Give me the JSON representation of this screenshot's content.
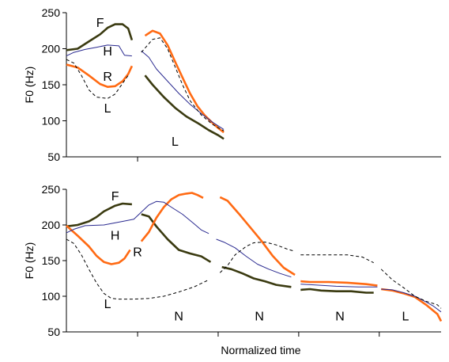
{
  "chart_data": [
    {
      "type": "line",
      "ylabel": "F0 (Hz)",
      "ylim": [
        50,
        250
      ],
      "yticks": [
        50,
        100,
        150,
        200,
        250
      ],
      "xlim": [
        0,
        1
      ],
      "grid": false,
      "segment_boundaries": [
        0.19
      ],
      "segment_labels": [
        {
          "text": "F",
          "x": 0.09,
          "y": 237
        },
        {
          "text": "H",
          "x": 0.11,
          "y": 197
        },
        {
          "text": "R",
          "x": 0.11,
          "y": 162
        },
        {
          "text": "L",
          "x": 0.11,
          "y": 118
        },
        {
          "text": "L",
          "x": 0.29,
          "y": 72
        }
      ],
      "series": [
        {
          "color": "#3a3a10",
          "width": 2.6,
          "dash": "",
          "segments": [
            [
              [
                0.0,
                198
              ],
              [
                0.03,
                200
              ],
              [
                0.06,
                210
              ],
              [
                0.09,
                220
              ],
              [
                0.11,
                229
              ],
              [
                0.13,
                234
              ],
              [
                0.15,
                234
              ],
              [
                0.165,
                228
              ],
              [
                0.175,
                212
              ]
            ],
            [
              [
                0.21,
                163
              ],
              [
                0.23,
                150
              ],
              [
                0.26,
                133
              ],
              [
                0.29,
                118
              ],
              [
                0.32,
                106
              ],
              [
                0.35,
                97
              ],
              [
                0.38,
                87
              ],
              [
                0.405,
                80
              ],
              [
                0.42,
                75
              ]
            ]
          ]
        },
        {
          "color": "#ff6a13",
          "width": 2.6,
          "dash": "",
          "segments": [
            [
              [
                0.0,
                178
              ],
              [
                0.03,
                174
              ],
              [
                0.06,
                163
              ],
              [
                0.09,
                151
              ],
              [
                0.11,
                147
              ],
              [
                0.13,
                148
              ],
              [
                0.15,
                155
              ],
              [
                0.165,
                165
              ],
              [
                0.175,
                176
              ]
            ],
            [
              [
                0.21,
                218
              ],
              [
                0.23,
                225
              ],
              [
                0.25,
                221
              ],
              [
                0.27,
                205
              ],
              [
                0.29,
                182
              ],
              [
                0.31,
                160
              ],
              [
                0.33,
                138
              ],
              [
                0.35,
                120
              ],
              [
                0.37,
                107
              ],
              [
                0.39,
                97
              ],
              [
                0.405,
                90
              ],
              [
                0.42,
                84
              ]
            ]
          ]
        },
        {
          "color": "#2a2a90",
          "width": 1,
          "dash": "",
          "segments": [
            [
              [
                0.0,
                190
              ],
              [
                0.02,
                195
              ],
              [
                0.05,
                199
              ],
              [
                0.08,
                202
              ],
              [
                0.11,
                205
              ],
              [
                0.14,
                204
              ],
              [
                0.155,
                191
              ],
              [
                0.175,
                190
              ]
            ],
            [
              [
                0.2,
                197
              ],
              [
                0.22,
                188
              ],
              [
                0.24,
                172
              ],
              [
                0.27,
                155
              ],
              [
                0.3,
                138
              ],
              [
                0.33,
                123
              ],
              [
                0.36,
                110
              ],
              [
                0.39,
                98
              ],
              [
                0.42,
                88
              ]
            ]
          ]
        },
        {
          "color": "#000000",
          "width": 1,
          "dash": "4,3",
          "segments": [
            [
              [
                0.0,
                185
              ],
              [
                0.02,
                180
              ],
              [
                0.04,
                163
              ],
              [
                0.06,
                143
              ],
              [
                0.08,
                133
              ],
              [
                0.11,
                131
              ],
              [
                0.13,
                137
              ],
              [
                0.15,
                152
              ],
              [
                0.165,
                163
              ]
            ],
            [
              [
                0.2,
                195
              ],
              [
                0.23,
                213
              ],
              [
                0.25,
                215
              ],
              [
                0.27,
                200
              ],
              [
                0.29,
                175
              ],
              [
                0.31,
                150
              ],
              [
                0.33,
                128
              ],
              [
                0.36,
                108
              ],
              [
                0.39,
                95
              ],
              [
                0.42,
                86
              ]
            ]
          ]
        }
      ]
    },
    {
      "type": "line",
      "ylabel": "F0 (Hz)",
      "xlabel": "Normalized time",
      "ylim": [
        50,
        250
      ],
      "yticks": [
        50,
        100,
        150,
        200,
        250
      ],
      "xlim": [
        0,
        1
      ],
      "grid": false,
      "segment_boundaries": [
        0.19,
        0.405,
        0.62,
        0.835
      ],
      "segment_labels": [
        {
          "text": "F",
          "x": 0.13,
          "y": 241
        },
        {
          "text": "H",
          "x": 0.13,
          "y": 186
        },
        {
          "text": "R",
          "x": 0.19,
          "y": 163
        },
        {
          "text": "L",
          "x": 0.11,
          "y": 90
        },
        {
          "text": "N",
          "x": 0.3,
          "y": 73
        },
        {
          "text": "N",
          "x": 0.515,
          "y": 73
        },
        {
          "text": "N",
          "x": 0.73,
          "y": 73
        },
        {
          "text": "L",
          "x": 0.905,
          "y": 73
        }
      ],
      "series": [
        {
          "color": "#3a3a10",
          "width": 2.6,
          "dash": "",
          "segments": [
            [
              [
                0.0,
                198
              ],
              [
                0.03,
                200
              ],
              [
                0.06,
                205
              ],
              [
                0.08,
                211
              ],
              [
                0.1,
                219
              ],
              [
                0.13,
                227
              ],
              [
                0.15,
                230
              ],
              [
                0.175,
                229
              ]
            ],
            [
              [
                0.2,
                215
              ],
              [
                0.22,
                212
              ],
              [
                0.24,
                198
              ],
              [
                0.27,
                180
              ],
              [
                0.3,
                165
              ],
              [
                0.33,
                160
              ],
              [
                0.36,
                156
              ],
              [
                0.385,
                148
              ]
            ],
            [
              [
                0.415,
                141
              ],
              [
                0.44,
                138
              ],
              [
                0.47,
                132
              ],
              [
                0.5,
                125
              ],
              [
                0.53,
                121
              ],
              [
                0.56,
                116
              ],
              [
                0.6,
                113
              ]
            ],
            [
              [
                0.625,
                109
              ],
              [
                0.65,
                110
              ],
              [
                0.68,
                108
              ],
              [
                0.72,
                107
              ],
              [
                0.76,
                107
              ],
              [
                0.8,
                105
              ],
              [
                0.82,
                105
              ]
            ]
          ]
        },
        {
          "color": "#ff6a13",
          "width": 2.6,
          "dash": "",
          "segments": [
            [
              [
                0.0,
                199
              ],
              [
                0.03,
                185
              ],
              [
                0.06,
                170
              ],
              [
                0.08,
                157
              ],
              [
                0.1,
                148
              ],
              [
                0.12,
                145
              ],
              [
                0.14,
                147
              ],
              [
                0.155,
                153
              ],
              [
                0.17,
                165
              ]
            ],
            [
              [
                0.2,
                177
              ],
              [
                0.22,
                190
              ],
              [
                0.24,
                210
              ],
              [
                0.26,
                225
              ],
              [
                0.28,
                236
              ],
              [
                0.3,
                242
              ],
              [
                0.32,
                244
              ],
              [
                0.335,
                245
              ],
              [
                0.35,
                242
              ],
              [
                0.365,
                238
              ]
            ],
            [
              [
                0.41,
                239
              ],
              [
                0.43,
                234
              ],
              [
                0.46,
                216
              ],
              [
                0.49,
                197
              ],
              [
                0.52,
                178
              ],
              [
                0.55,
                157
              ],
              [
                0.58,
                140
              ],
              [
                0.61,
                130
              ]
            ],
            [
              [
                0.625,
                121
              ],
              [
                0.65,
                120
              ],
              [
                0.7,
                120
              ],
              [
                0.75,
                119
              ],
              [
                0.8,
                117
              ],
              [
                0.83,
                115
              ]
            ],
            [
              [
                0.84,
                110
              ],
              [
                0.87,
                108
              ],
              [
                0.9,
                104
              ],
              [
                0.93,
                99
              ],
              [
                0.96,
                88
              ],
              [
                0.99,
                75
              ],
              [
                1.0,
                65
              ]
            ]
          ]
        },
        {
          "color": "#2a2a90",
          "width": 1,
          "dash": "",
          "segments": [
            [
              [
                0.0,
                189
              ],
              [
                0.02,
                194
              ],
              [
                0.05,
                199
              ],
              [
                0.1,
                200
              ],
              [
                0.15,
                205
              ],
              [
                0.18,
                208
              ],
              [
                0.2,
                218
              ],
              [
                0.22,
                228
              ],
              [
                0.24,
                233
              ],
              [
                0.26,
                232
              ],
              [
                0.28,
                225
              ],
              [
                0.31,
                215
              ],
              [
                0.34,
                202
              ],
              [
                0.36,
                193
              ],
              [
                0.38,
                188
              ]
            ],
            [
              [
                0.4,
                180
              ],
              [
                0.42,
                176
              ],
              [
                0.45,
                168
              ],
              [
                0.48,
                156
              ],
              [
                0.51,
                145
              ],
              [
                0.54,
                138
              ],
              [
                0.57,
                132
              ],
              [
                0.6,
                127
              ]
            ],
            [
              [
                0.625,
                117
              ],
              [
                0.66,
                116
              ],
              [
                0.72,
                114
              ],
              [
                0.78,
                113
              ],
              [
                0.83,
                113
              ]
            ],
            [
              [
                0.84,
                110
              ],
              [
                0.87,
                109
              ],
              [
                0.9,
                105
              ],
              [
                0.93,
                100
              ],
              [
                0.96,
                92
              ],
              [
                0.98,
                86
              ],
              [
                1.0,
                78
              ]
            ]
          ]
        },
        {
          "color": "#000000",
          "width": 1,
          "dash": "4,3",
          "segments": [
            [
              [
                0.0,
                180
              ],
              [
                0.02,
                174
              ],
              [
                0.04,
                158
              ],
              [
                0.06,
                138
              ],
              [
                0.08,
                119
              ],
              [
                0.1,
                104
              ],
              [
                0.12,
                97
              ],
              [
                0.14,
                96
              ],
              [
                0.18,
                96
              ],
              [
                0.22,
                97
              ],
              [
                0.26,
                100
              ],
              [
                0.3,
                106
              ],
              [
                0.34,
                113
              ],
              [
                0.38,
                123
              ]
            ],
            [
              [
                0.41,
                133
              ],
              [
                0.43,
                143
              ],
              [
                0.45,
                158
              ],
              [
                0.48,
                170
              ],
              [
                0.5,
                175
              ],
              [
                0.53,
                176
              ],
              [
                0.56,
                172
              ],
              [
                0.59,
                166
              ],
              [
                0.61,
                163
              ]
            ],
            [
              [
                0.625,
                158
              ],
              [
                0.65,
                158
              ],
              [
                0.7,
                158
              ],
              [
                0.75,
                158
              ],
              [
                0.79,
                155
              ],
              [
                0.82,
                147
              ]
            ],
            [
              [
                0.84,
                138
              ],
              [
                0.87,
                123
              ],
              [
                0.9,
                112
              ],
              [
                0.93,
                100
              ],
              [
                0.96,
                93
              ],
              [
                0.99,
                88
              ],
              [
                1.0,
                83
              ]
            ]
          ]
        }
      ]
    }
  ]
}
